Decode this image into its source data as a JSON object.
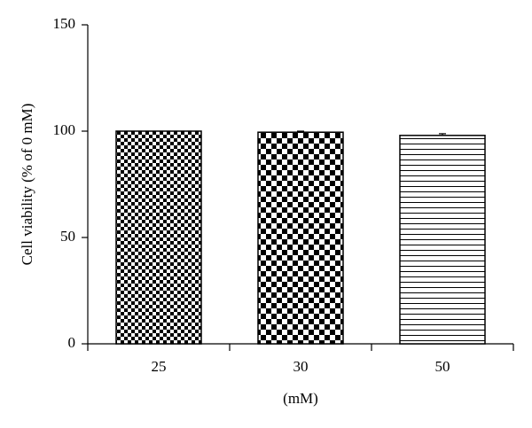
{
  "chart_data": {
    "type": "bar",
    "y_label": "Cell viability (% of 0 mM)",
    "x_label": "(mM)",
    "categories": [
      "25",
      "30",
      "50"
    ],
    "values": [
      100,
      99.5,
      98
    ],
    "errors": [
      0,
      0.5,
      0.8
    ],
    "patterns": [
      "fine-checker",
      "coarse-checker",
      "horizontal-lines"
    ],
    "ylim": [
      0,
      150
    ],
    "yticks": [
      0,
      50,
      100,
      150
    ],
    "grid": false
  }
}
